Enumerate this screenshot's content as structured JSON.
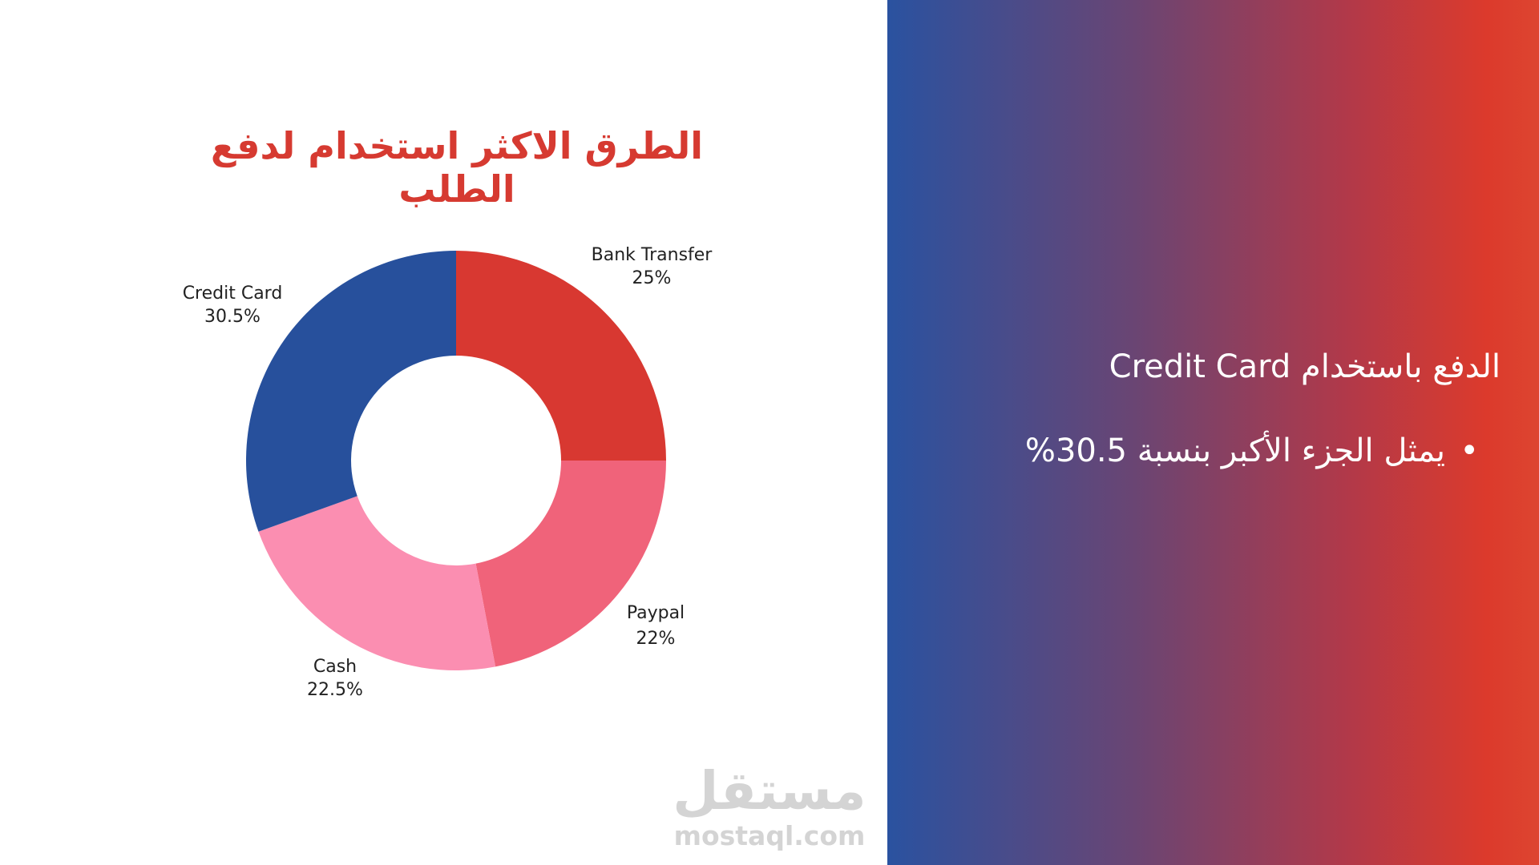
{
  "chart_data": {
    "type": "pie",
    "style": "donut",
    "title": "الطرق الاكثر استخدام لدفع الطلب",
    "categories": [
      "Bank Transfer",
      "Paypal",
      "Cash",
      "Credit Card"
    ],
    "values": [
      25,
      22,
      22.5,
      30.5
    ],
    "value_labels": [
      "25%",
      "22%",
      "22.5%",
      "30.5%"
    ],
    "colors": [
      "#d83831",
      "#f0637a",
      "#fb8eb1",
      "#27509c"
    ],
    "start_angle": "12 o'clock",
    "direction": "clockwise"
  },
  "insight": {
    "heading": "الدفع باستخدام Credit Card",
    "bullets": [
      "يمثل الجزء الأكبر بنسبة 30.5%"
    ],
    "bullet_symbol": "•"
  },
  "watermark": {
    "arabic": "مستقل",
    "latin": "mostaql.com"
  },
  "colors": {
    "title": "#d63a31",
    "gradient_start": "#2a52a0",
    "gradient_end": "#dc3a2c",
    "watermark": "#d4d4d4"
  }
}
